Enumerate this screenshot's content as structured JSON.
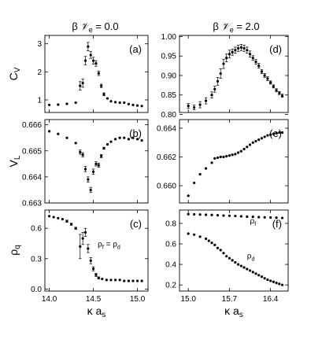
{
  "column_titles": {
    "left": {
      "prefix": "β",
      "symbol": "𝒱",
      "subscript": "e",
      "rest": " = 0.0"
    },
    "right": {
      "prefix": "β",
      "symbol": "𝒱",
      "subscript": "e",
      "rest": " = 2.0"
    }
  },
  "chart_data": [
    {
      "id": "a",
      "panel_label": "(a)",
      "type": "scatter",
      "xlim": [
        13.95,
        15.12
      ],
      "ylim": [
        0.55,
        3.3
      ],
      "yticks": [
        1,
        2,
        3
      ],
      "ytick_labels": [
        "1",
        "2",
        "3"
      ],
      "ylabel": {
        "main": "C",
        "sub": "V"
      },
      "series": [
        {
          "x": [
            14.0,
            14.1,
            14.2,
            14.3,
            14.35,
            14.38,
            14.41,
            14.44,
            14.47,
            14.5,
            14.53,
            14.56,
            14.59,
            14.62,
            14.66,
            14.7,
            14.75,
            14.8,
            14.85,
            14.9,
            14.95,
            15.0,
            15.05
          ],
          "y": [
            0.82,
            0.83,
            0.86,
            0.9,
            1.5,
            1.6,
            2.4,
            2.9,
            2.6,
            2.4,
            2.3,
            1.95,
            1.5,
            1.2,
            1.05,
            0.95,
            0.92,
            0.9,
            0.9,
            0.85,
            0.82,
            0.8,
            0.78
          ],
          "err": [
            0.02,
            0.02,
            0.02,
            0.03,
            0.15,
            0.15,
            0.15,
            0.15,
            0.12,
            0.12,
            0.1,
            0.08,
            0.06,
            0.05,
            0.03,
            0.03,
            0.02,
            0.02,
            0.02,
            0.02,
            0.02,
            0.02,
            0.02
          ]
        }
      ]
    },
    {
      "id": "b",
      "panel_label": "(b)",
      "type": "scatter",
      "xlim": [
        13.95,
        15.12
      ],
      "ylim": [
        0.663,
        0.6662
      ],
      "yticks": [
        0.663,
        0.664,
        0.665,
        0.666
      ],
      "ytick_labels": [
        "0.663",
        "0.664",
        "0.665",
        "0.666"
      ],
      "ylabel": {
        "main": "V",
        "sub": "L"
      },
      "series": [
        {
          "x": [
            14.0,
            14.1,
            14.2,
            14.3,
            14.35,
            14.38,
            14.41,
            14.44,
            14.47,
            14.5,
            14.53,
            14.56,
            14.59,
            14.62,
            14.66,
            14.7,
            14.75,
            14.8,
            14.85,
            14.9,
            14.95,
            15.0,
            15.05
          ],
          "y": [
            0.66575,
            0.66565,
            0.6655,
            0.6653,
            0.66495,
            0.66485,
            0.6643,
            0.6639,
            0.6635,
            0.6642,
            0.6645,
            0.66445,
            0.6648,
            0.6651,
            0.66525,
            0.66535,
            0.66545,
            0.6655,
            0.6655,
            0.66545,
            0.6655,
            0.66545,
            0.6654
          ],
          "err": [
            2e-05,
            2e-05,
            2e-05,
            3e-05,
            8e-05,
            8e-05,
            0.0001,
            0.0001,
            0.0001,
            0.0001,
            8e-05,
            8e-05,
            6e-05,
            4e-05,
            3e-05,
            3e-05,
            2e-05,
            2e-05,
            2e-05,
            2e-05,
            2e-05,
            2e-05,
            2e-05
          ]
        }
      ]
    },
    {
      "id": "c",
      "panel_label": "(c)",
      "type": "scatter",
      "xlim": [
        13.95,
        15.12
      ],
      "ylim": [
        -0.02,
        0.78
      ],
      "yticks": [
        0.0,
        0.3,
        0.6
      ],
      "ytick_labels": [
        "0.0",
        "0.3",
        "0.6"
      ],
      "xticks": [
        14.0,
        14.5,
        15.0
      ],
      "xtick_labels": [
        "14.0",
        "14.5",
        "15.0"
      ],
      "ylabel": {
        "main": "ρ",
        "sub": "q"
      },
      "xlabel": {
        "main": "κ a",
        "sub": "s"
      },
      "annotations": [
        {
          "parts": [
            "ρ",
            "f",
            " = ρ",
            "d"
          ],
          "x": 14.55,
          "y": 0.42
        }
      ],
      "series": [
        {
          "x": [
            14.0,
            14.05,
            14.1,
            14.15,
            14.2,
            14.25,
            14.3,
            14.35,
            14.38,
            14.41,
            14.44,
            14.47,
            14.5,
            14.53,
            14.56,
            14.6,
            14.65,
            14.7,
            14.75,
            14.8,
            14.85,
            14.9,
            14.95,
            15.0,
            15.05
          ],
          "y": [
            0.72,
            0.71,
            0.7,
            0.69,
            0.67,
            0.64,
            0.6,
            0.42,
            0.5,
            0.56,
            0.4,
            0.28,
            0.2,
            0.14,
            0.11,
            0.1,
            0.09,
            0.09,
            0.09,
            0.09,
            0.08,
            0.08,
            0.08,
            0.08,
            0.08
          ],
          "err": [
            0.005,
            0.005,
            0.005,
            0.005,
            0.01,
            0.01,
            0.01,
            0.12,
            0.06,
            0.04,
            0.04,
            0.03,
            0.02,
            0.015,
            0.01,
            0.005,
            0.005,
            0.005,
            0.005,
            0.005,
            0.005,
            0.005,
            0.005,
            0.005,
            0.005
          ]
        }
      ]
    },
    {
      "id": "d",
      "panel_label": "(d)",
      "type": "scatter",
      "xlim": [
        14.85,
        16.7
      ],
      "ylim": [
        0.805,
        1.003
      ],
      "yticks": [
        0.8,
        0.85,
        0.9,
        0.95,
        1.0
      ],
      "ytick_labels": [
        "0.80",
        "0.85",
        "0.90",
        "0.95",
        "1.00"
      ],
      "series": [
        {
          "x": [
            15.0,
            15.1,
            15.2,
            15.3,
            15.4,
            15.45,
            15.5,
            15.55,
            15.6,
            15.65,
            15.7,
            15.75,
            15.8,
            15.85,
            15.9,
            15.95,
            16.0,
            16.05,
            16.1,
            16.15,
            16.2,
            16.25,
            16.3,
            16.35,
            16.4,
            16.45,
            16.5,
            16.55,
            16.6
          ],
          "y": [
            0.822,
            0.818,
            0.825,
            0.835,
            0.85,
            0.865,
            0.885,
            0.905,
            0.93,
            0.945,
            0.955,
            0.96,
            0.965,
            0.97,
            0.972,
            0.97,
            0.965,
            0.955,
            0.945,
            0.935,
            0.925,
            0.91,
            0.9,
            0.892,
            0.882,
            0.872,
            0.862,
            0.855,
            0.848
          ],
          "err": [
            0.006,
            0.006,
            0.008,
            0.008,
            0.008,
            0.008,
            0.01,
            0.012,
            0.012,
            0.01,
            0.01,
            0.008,
            0.008,
            0.008,
            0.008,
            0.008,
            0.008,
            0.008,
            0.006,
            0.006,
            0.006,
            0.005,
            0.005,
            0.005,
            0.004,
            0.004,
            0.004,
            0.004,
            0.004
          ]
        }
      ]
    },
    {
      "id": "e",
      "panel_label": "(e)",
      "type": "scatter",
      "xlim": [
        14.85,
        16.7
      ],
      "ylim": [
        0.6588,
        0.6646
      ],
      "yticks": [
        0.66,
        0.662,
        0.664
      ],
      "ytick_labels": [
        "0.660",
        "0.662",
        "0.664"
      ],
      "series": [
        {
          "x": [
            15.0,
            15.1,
            15.2,
            15.3,
            15.4,
            15.45,
            15.5,
            15.55,
            15.6,
            15.65,
            15.7,
            15.75,
            15.8,
            15.85,
            15.9,
            15.95,
            16.0,
            16.05,
            16.1,
            16.15,
            16.2,
            16.25,
            16.3,
            16.35,
            16.4,
            16.45,
            16.5,
            16.55,
            16.6
          ],
          "y": [
            0.6593,
            0.6602,
            0.6608,
            0.6612,
            0.6616,
            0.6619,
            0.66195,
            0.662,
            0.662,
            0.66205,
            0.6621,
            0.66215,
            0.6622,
            0.6623,
            0.6624,
            0.66255,
            0.6627,
            0.66285,
            0.663,
            0.6631,
            0.6632,
            0.6633,
            0.6634,
            0.6635,
            0.66355,
            0.6636,
            0.66365,
            0.6637,
            0.6637
          ],
          "err": [
            6e-05,
            4e-05,
            4e-05,
            3e-05,
            3e-05,
            3e-05,
            3e-05,
            2e-05,
            2e-05,
            2e-05,
            2e-05,
            2e-05,
            2e-05,
            2e-05,
            2e-05,
            2e-05,
            2e-05,
            2e-05,
            2e-05,
            2e-05,
            2e-05,
            2e-05,
            2e-05,
            2e-05,
            2e-05,
            2e-05,
            2e-05,
            2e-05,
            2e-05
          ]
        }
      ]
    },
    {
      "id": "f",
      "panel_label": "(f)",
      "type": "scatter",
      "xlim": [
        14.85,
        16.7
      ],
      "ylim": [
        0.14,
        0.93
      ],
      "yticks": [
        0.2,
        0.4,
        0.6,
        0.8
      ],
      "ytick_labels": [
        "0.2",
        "0.4",
        "0.6",
        "0.8"
      ],
      "xticks": [
        15.0,
        15.7,
        16.4
      ],
      "xtick_labels": [
        "15.0",
        "15.7",
        "16.4"
      ],
      "xlabel": {
        "main": "κ a",
        "sub": "s"
      },
      "annotations": [
        {
          "parts": [
            "ρ",
            "f"
          ],
          "x": 16.05,
          "y": 0.8
        },
        {
          "parts": [
            "ρ",
            "d"
          ],
          "x": 16.0,
          "y": 0.46
        }
      ],
      "series": [
        {
          "name": "ρf",
          "x": [
            15.0,
            15.1,
            15.2,
            15.3,
            15.4,
            15.5,
            15.6,
            15.7,
            15.8,
            15.9,
            16.0,
            16.1,
            16.2,
            16.3,
            16.4,
            16.5,
            16.6
          ],
          "y": [
            0.89,
            0.888,
            0.886,
            0.884,
            0.882,
            0.879,
            0.876,
            0.874,
            0.872,
            0.869,
            0.866,
            0.864,
            0.861,
            0.859,
            0.857,
            0.855,
            0.853
          ]
        },
        {
          "name": "ρd",
          "x": [
            15.0,
            15.1,
            15.2,
            15.3,
            15.35,
            15.4,
            15.45,
            15.5,
            15.55,
            15.6,
            15.65,
            15.7,
            15.75,
            15.8,
            15.85,
            15.9,
            15.95,
            16.0,
            16.05,
            16.1,
            16.15,
            16.2,
            16.25,
            16.3,
            16.35,
            16.4,
            16.45,
            16.5,
            16.55,
            16.6
          ],
          "y": [
            0.7,
            0.69,
            0.67,
            0.65,
            0.63,
            0.61,
            0.59,
            0.56,
            0.54,
            0.51,
            0.48,
            0.46,
            0.44,
            0.42,
            0.4,
            0.385,
            0.37,
            0.355,
            0.34,
            0.325,
            0.31,
            0.295,
            0.28,
            0.265,
            0.25,
            0.24,
            0.23,
            0.22,
            0.21,
            0.2
          ]
        }
      ]
    }
  ]
}
